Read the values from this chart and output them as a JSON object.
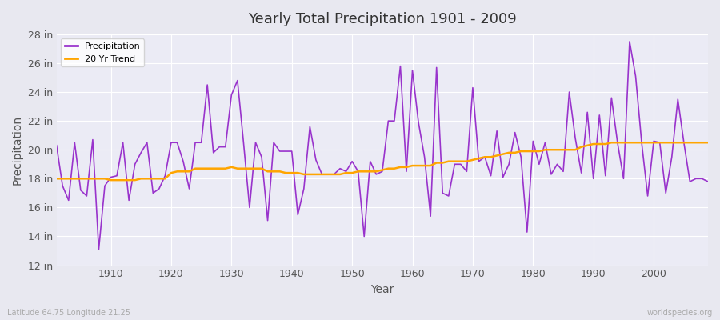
{
  "title": "Yearly Total Precipitation 1901 - 2009",
  "xlabel": "Year",
  "ylabel": "Precipitation",
  "bottom_left_label": "Latitude 64.75 Longitude 21.25",
  "bottom_right_label": "worldspecies.org",
  "precip_color": "#9933CC",
  "trend_color": "#FFA500",
  "bg_color": "#E8E8F0",
  "plot_bg_color": "#EBEBF5",
  "grid_color": "#FFFFFF",
  "ylim": [
    12,
    28
  ],
  "yticks": [
    12,
    14,
    16,
    18,
    20,
    22,
    24,
    26,
    28
  ],
  "ytick_labels": [
    "12 in",
    "14 in",
    "16 in",
    "18 in",
    "20 in",
    "22 in",
    "24 in",
    "26 in",
    "28 in"
  ],
  "xlim": [
    1901,
    2009
  ],
  "xtick_positions": [
    1910,
    1920,
    1930,
    1940,
    1950,
    1960,
    1970,
    1980,
    1990,
    2000
  ],
  "years": [
    1901,
    1902,
    1903,
    1904,
    1905,
    1906,
    1907,
    1908,
    1909,
    1910,
    1911,
    1912,
    1913,
    1914,
    1915,
    1916,
    1917,
    1918,
    1919,
    1920,
    1921,
    1922,
    1923,
    1924,
    1925,
    1926,
    1927,
    1928,
    1929,
    1930,
    1931,
    1932,
    1933,
    1934,
    1935,
    1936,
    1937,
    1938,
    1939,
    1940,
    1941,
    1942,
    1943,
    1944,
    1945,
    1946,
    1947,
    1948,
    1949,
    1950,
    1951,
    1952,
    1953,
    1954,
    1955,
    1956,
    1957,
    1958,
    1959,
    1960,
    1961,
    1962,
    1963,
    1964,
    1965,
    1966,
    1967,
    1968,
    1969,
    1970,
    1971,
    1972,
    1973,
    1974,
    1975,
    1976,
    1977,
    1978,
    1979,
    1980,
    1981,
    1982,
    1983,
    1984,
    1985,
    1986,
    1987,
    1988,
    1989,
    1990,
    1991,
    1992,
    1993,
    1994,
    1995,
    1996,
    1997,
    1998,
    1999,
    2000,
    2001,
    2002,
    2003,
    2004,
    2005,
    2006,
    2007,
    2008,
    2009
  ],
  "precip": [
    20.3,
    17.5,
    16.5,
    20.5,
    17.2,
    16.8,
    20.7,
    13.1,
    17.5,
    18.1,
    18.2,
    20.5,
    16.5,
    19.0,
    19.8,
    20.5,
    17.0,
    17.3,
    18.2,
    20.5,
    20.5,
    19.2,
    17.3,
    20.5,
    20.5,
    24.5,
    19.8,
    20.2,
    20.2,
    23.8,
    24.8,
    20.5,
    16.0,
    20.5,
    19.5,
    15.1,
    20.5,
    19.9,
    19.9,
    19.9,
    15.5,
    17.3,
    21.6,
    19.3,
    18.3,
    18.3,
    18.3,
    18.7,
    18.5,
    19.2,
    18.5,
    14.0,
    19.2,
    18.3,
    18.5,
    22.0,
    22.0,
    25.8,
    18.5,
    25.5,
    21.9,
    19.5,
    15.4,
    25.7,
    17.0,
    16.8,
    19.0,
    19.0,
    18.5,
    24.3,
    19.2,
    19.5,
    18.2,
    21.3,
    18.1,
    19.0,
    21.2,
    19.5,
    14.3,
    20.6,
    19.0,
    20.5,
    18.3,
    19.0,
    18.5,
    24.0,
    20.8,
    18.4,
    22.6,
    18.0,
    22.4,
    18.2,
    23.6,
    20.5,
    18.0,
    27.5,
    25.1,
    20.5,
    16.8,
    20.6,
    20.5,
    17.0,
    19.5,
    23.5,
    20.5,
    17.8,
    18.0,
    18.0,
    17.8
  ],
  "trend": [
    18.0,
    18.0,
    18.0,
    18.0,
    18.0,
    18.0,
    18.0,
    18.0,
    18.0,
    17.9,
    17.9,
    17.9,
    17.9,
    17.9,
    18.0,
    18.0,
    18.0,
    18.0,
    18.0,
    18.4,
    18.5,
    18.5,
    18.5,
    18.7,
    18.7,
    18.7,
    18.7,
    18.7,
    18.7,
    18.8,
    18.7,
    18.7,
    18.7,
    18.7,
    18.7,
    18.5,
    18.5,
    18.5,
    18.4,
    18.4,
    18.4,
    18.3,
    18.3,
    18.3,
    18.3,
    18.3,
    18.3,
    18.3,
    18.4,
    18.4,
    18.5,
    18.5,
    18.5,
    18.5,
    18.6,
    18.7,
    18.7,
    18.8,
    18.8,
    18.9,
    18.9,
    18.9,
    18.9,
    19.1,
    19.1,
    19.2,
    19.2,
    19.2,
    19.2,
    19.3,
    19.4,
    19.5,
    19.5,
    19.6,
    19.7,
    19.8,
    19.8,
    19.9,
    19.9,
    19.9,
    19.9,
    20.0,
    20.0,
    20.0,
    20.0,
    20.0,
    20.0,
    20.2,
    20.3,
    20.4,
    20.4,
    20.4,
    20.5,
    20.5,
    20.5,
    20.5,
    20.5,
    20.5,
    20.5,
    20.5,
    20.5,
    20.5,
    20.5,
    20.5,
    20.5,
    20.5,
    20.5,
    20.5,
    20.5
  ]
}
